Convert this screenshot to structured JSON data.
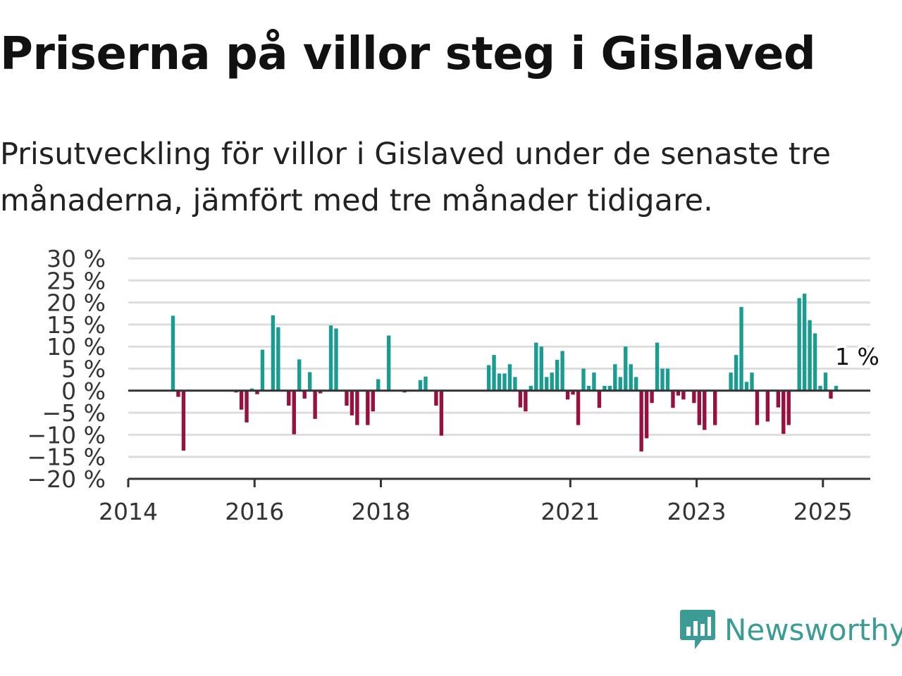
{
  "header": {
    "title": "Priserna på villor steg i Gislaved",
    "subtitle": "Prisutveckling för villor i Gislaved under de senaste tre månaderna, jämfört med tre månader tidigare."
  },
  "brand": {
    "name": "Newsworthy",
    "color": "#3a9c94"
  },
  "colors": {
    "positive": "#1a9c93",
    "negative": "#98103f",
    "grid": "#dddddd",
    "axis": "#333333"
  },
  "chart_data": {
    "type": "bar",
    "title": "Priserna på villor steg i Gislaved",
    "ylim": [
      -20,
      30
    ],
    "yticks": [
      30,
      25,
      20,
      15,
      10,
      5,
      0,
      -5,
      -10,
      -15,
      -20
    ],
    "ytick_labels": [
      "30 %",
      "25 %",
      "20 %",
      "15 %",
      "10 %",
      "5 %",
      "0 %",
      "−5 %",
      "−10 %",
      "−15 %",
      "−20 %"
    ],
    "xlim": [
      "2014-01-01",
      "2025-10-01"
    ],
    "xticks": [
      "2014-01-01",
      "2016-01-01",
      "2018-01-01",
      "2021-01-01",
      "2023-01-01",
      "2025-01-01"
    ],
    "xtick_labels": [
      "2014",
      "2016",
      "2018",
      "2021",
      "2023",
      "2025"
    ],
    "grid": true,
    "last_label": "1 %",
    "series": [
      {
        "values": [
          {
            "x": "2014-09",
            "y": 17
          },
          {
            "x": "2014-10",
            "y": -1.4
          },
          {
            "x": "2014-11",
            "y": -13.6
          },
          {
            "x": "2015-09",
            "y": -0.4
          },
          {
            "x": "2015-10",
            "y": -4.3
          },
          {
            "x": "2015-11",
            "y": -7.2
          },
          {
            "x": "2015-12",
            "y": 0.5
          },
          {
            "x": "2016-01",
            "y": -0.8
          },
          {
            "x": "2016-02",
            "y": 9.3
          },
          {
            "x": "2016-04",
            "y": 17.1
          },
          {
            "x": "2016-05",
            "y": 14.4
          },
          {
            "x": "2016-07",
            "y": -3.4
          },
          {
            "x": "2016-08",
            "y": -9.9
          },
          {
            "x": "2016-09",
            "y": 7.1
          },
          {
            "x": "2016-10",
            "y": -1.8
          },
          {
            "x": "2016-11",
            "y": 4.2
          },
          {
            "x": "2016-12",
            "y": -6.4
          },
          {
            "x": "2017-01",
            "y": -0.6
          },
          {
            "x": "2017-03",
            "y": 14.8
          },
          {
            "x": "2017-04",
            "y": 14.1
          },
          {
            "x": "2017-06",
            "y": -3.4
          },
          {
            "x": "2017-07",
            "y": -5.6
          },
          {
            "x": "2017-08",
            "y": -7.8
          },
          {
            "x": "2017-10",
            "y": -7.8
          },
          {
            "x": "2017-11",
            "y": -4.7
          },
          {
            "x": "2017-12",
            "y": 2.6
          },
          {
            "x": "2018-02",
            "y": 12.5
          },
          {
            "x": "2018-05",
            "y": -0.4
          },
          {
            "x": "2018-08",
            "y": 2.4
          },
          {
            "x": "2018-09",
            "y": 3.2
          },
          {
            "x": "2018-11",
            "y": -3.4
          },
          {
            "x": "2018-12",
            "y": -10.2
          },
          {
            "x": "2019-09",
            "y": 5.8
          },
          {
            "x": "2019-10",
            "y": 8.1
          },
          {
            "x": "2019-11",
            "y": 3.9
          },
          {
            "x": "2019-12",
            "y": 3.9
          },
          {
            "x": "2020-01",
            "y": 6
          },
          {
            "x": "2020-02",
            "y": 3.1
          },
          {
            "x": "2020-03",
            "y": -3.8
          },
          {
            "x": "2020-04",
            "y": -4.7
          },
          {
            "x": "2020-05",
            "y": 1.1
          },
          {
            "x": "2020-06",
            "y": 10.9
          },
          {
            "x": "2020-07",
            "y": 10
          },
          {
            "x": "2020-08",
            "y": 3.1
          },
          {
            "x": "2020-09",
            "y": 4.1
          },
          {
            "x": "2020-10",
            "y": 7
          },
          {
            "x": "2020-11",
            "y": 9
          },
          {
            "x": "2020-12",
            "y": -2
          },
          {
            "x": "2021-01",
            "y": -0.9
          },
          {
            "x": "2021-02",
            "y": -7.8
          },
          {
            "x": "2021-03",
            "y": 5
          },
          {
            "x": "2021-04",
            "y": 1.1
          },
          {
            "x": "2021-05",
            "y": 4.1
          },
          {
            "x": "2021-06",
            "y": -3.9
          },
          {
            "x": "2021-07",
            "y": 1.1
          },
          {
            "x": "2021-08",
            "y": 1.1
          },
          {
            "x": "2021-09",
            "y": 6
          },
          {
            "x": "2021-10",
            "y": 3.1
          },
          {
            "x": "2021-11",
            "y": 10
          },
          {
            "x": "2021-12",
            "y": 6
          },
          {
            "x": "2022-01",
            "y": 3.1
          },
          {
            "x": "2022-02",
            "y": -13.8
          },
          {
            "x": "2022-03",
            "y": -10.8
          },
          {
            "x": "2022-04",
            "y": -2.8
          },
          {
            "x": "2022-05",
            "y": 10.9
          },
          {
            "x": "2022-06",
            "y": 5
          },
          {
            "x": "2022-07",
            "y": 5
          },
          {
            "x": "2022-08",
            "y": -3.9
          },
          {
            "x": "2022-09",
            "y": -1.1
          },
          {
            "x": "2022-10",
            "y": -2
          },
          {
            "x": "2022-11",
            "y": 0.2
          },
          {
            "x": "2022-12",
            "y": -2.8
          },
          {
            "x": "2023-01",
            "y": -7.8
          },
          {
            "x": "2023-02",
            "y": -8.9
          },
          {
            "x": "2023-03",
            "y": -0.2
          },
          {
            "x": "2023-04",
            "y": -7.8
          },
          {
            "x": "2023-07",
            "y": 4.1
          },
          {
            "x": "2023-08",
            "y": 8.1
          },
          {
            "x": "2023-09",
            "y": 19
          },
          {
            "x": "2023-10",
            "y": 2
          },
          {
            "x": "2023-11",
            "y": 4.1
          },
          {
            "x": "2023-12",
            "y": -7.8
          },
          {
            "x": "2024-02",
            "y": -7
          },
          {
            "x": "2024-04",
            "y": -3.8
          },
          {
            "x": "2024-05",
            "y": -9.8
          },
          {
            "x": "2024-06",
            "y": -7.8
          },
          {
            "x": "2024-08",
            "y": 21
          },
          {
            "x": "2024-09",
            "y": 22
          },
          {
            "x": "2024-10",
            "y": 16
          },
          {
            "x": "2024-11",
            "y": 13
          },
          {
            "x": "2024-12",
            "y": 1.1
          },
          {
            "x": "2025-01",
            "y": 4.1
          },
          {
            "x": "2025-02",
            "y": -1.8
          },
          {
            "x": "2025-03",
            "y": 1.1
          }
        ]
      }
    ]
  }
}
